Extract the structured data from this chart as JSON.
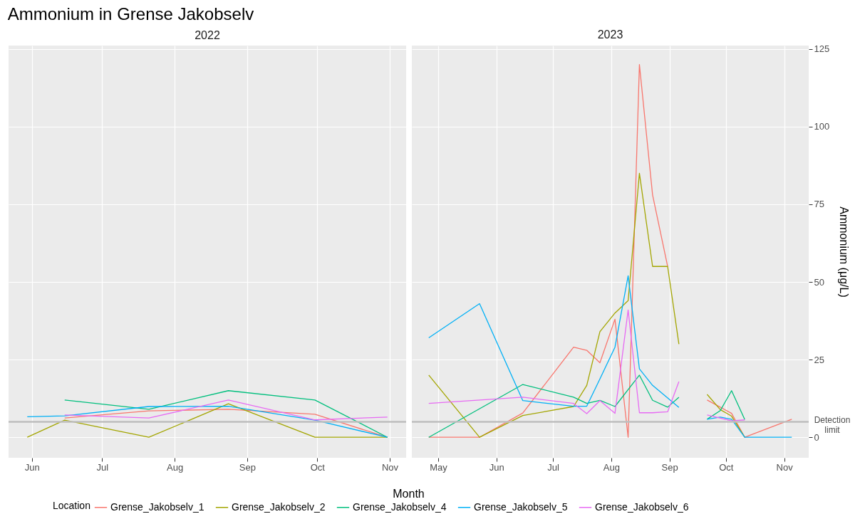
{
  "chart_data": [
    {
      "type": "line",
      "title": "Ammonium in Grense Jakobselv",
      "subtitle": "2022",
      "xlabel": "Month",
      "legend_title": "Location",
      "legend": "bottom",
      "grid": true,
      "tick_labels": "x",
      "line_style": "solid",
      "xlim": [
        "2022-05-22",
        "2022-11-08"
      ],
      "xticks": [
        {
          "value": "2022-06-01",
          "label": "Jun"
        },
        {
          "value": "2022-07-01",
          "label": "Jul"
        },
        {
          "value": "2022-08-01",
          "label": "Aug"
        },
        {
          "value": "2022-09-01",
          "label": "Sep"
        },
        {
          "value": "2022-10-01",
          "label": "Oct"
        },
        {
          "value": "2022-11-01",
          "label": "Nov"
        }
      ],
      "ylim": [
        -6.6,
        126.1
      ],
      "yticks": [
        0,
        25,
        50,
        75,
        100,
        125
      ],
      "ref_lines": [
        {
          "axis": "y",
          "value": 5,
          "color": "#bebebe"
        }
      ],
      "series": [
        {
          "name": "Grense_Jakobselv_1",
          "color": "#f8766d",
          "x": [
            "2022-06-15",
            "2022-07-21",
            "2022-08-24",
            "2022-09-30",
            "2022-10-31"
          ],
          "values": [
            6.2,
            8.5,
            9,
            7.4,
            0
          ]
        },
        {
          "name": "Grense_Jakobselv_2",
          "color": "#a3a500",
          "x": [
            "2022-05-30",
            "2022-06-15",
            "2022-07-21",
            "2022-08-24",
            "2022-09-30",
            "2022-10-31"
          ],
          "values": [
            0,
            5.5,
            0,
            10.8,
            0,
            0
          ]
        },
        {
          "name": "Grense_Jakobselv_4",
          "color": "#00bf7d",
          "x": [
            "2022-06-15",
            "2022-07-21",
            "2022-08-24",
            "2022-09-30",
            "2022-10-31"
          ],
          "values": [
            12,
            9,
            15,
            12,
            0
          ]
        },
        {
          "name": "Grense_Jakobselv_5",
          "color": "#00b0f6",
          "x": [
            "2022-05-30",
            "2022-06-15",
            "2022-07-21",
            "2022-08-24",
            "2022-09-30",
            "2022-10-31"
          ],
          "values": [
            6.6,
            6.9,
            9.9,
            10,
            5.5,
            0
          ]
        },
        {
          "name": "Grense_Jakobselv_6",
          "color": "#e76bf3",
          "x": [
            "2022-06-15",
            "2022-07-21",
            "2022-08-24",
            "2022-09-30",
            "2022-10-31"
          ],
          "values": [
            7.2,
            6.2,
            12,
            5.6,
            6.5
          ]
        }
      ]
    },
    {
      "type": "line",
      "subtitle": "2023",
      "ylabel": "Ammonium (μg/L)",
      "grid": true,
      "line_style": "solid",
      "xlim": [
        "2023-04-17",
        "2023-11-14"
      ],
      "xticks": [
        {
          "value": "2023-05-01",
          "label": "May"
        },
        {
          "value": "2023-06-01",
          "label": "Jun"
        },
        {
          "value": "2023-07-01",
          "label": "Jul"
        },
        {
          "value": "2023-08-01",
          "label": "Aug"
        },
        {
          "value": "2023-09-01",
          "label": "Sep"
        },
        {
          "value": "2023-10-01",
          "label": "Oct"
        },
        {
          "value": "2023-11-01",
          "label": "Nov"
        }
      ],
      "ylim": [
        -6.6,
        126.1
      ],
      "yticks": [
        0,
        25,
        50,
        75,
        100,
        125
      ],
      "ref_lines": [
        {
          "axis": "y",
          "value": 5,
          "label": "Detection limit",
          "color": "#bebebe"
        }
      ],
      "series": [
        {
          "color": "#f8766d",
          "x": [
            "2023-04-26",
            "2023-05-23",
            "2023-06-15",
            "2023-07-12",
            "2023-07-19",
            "2023-07-26",
            "2023-08-03",
            "2023-08-10",
            "2023-08-16",
            "2023-08-23",
            "2023-08-31",
            "2023-09-14",
            "2023-09-21",
            "2023-10-04",
            "2023-10-11",
            "2023-11-05"
          ],
          "values": [
            0,
            0,
            7.8,
            29,
            28,
            24,
            38,
            0,
            120,
            78,
            55,
            null,
            12,
            7.7,
            0,
            5.8
          ]
        },
        {
          "color": "#a3a500",
          "x": [
            "2023-04-26",
            "2023-05-23",
            "2023-06-15",
            "2023-07-12",
            "2023-07-19",
            "2023-07-26",
            "2023-08-03",
            "2023-08-10",
            "2023-08-16",
            "2023-08-23",
            "2023-08-31",
            "2023-09-06",
            "2023-09-14",
            "2023-09-21",
            "2023-09-28",
            "2023-10-04",
            "2023-10-11"
          ],
          "values": [
            20,
            0,
            7,
            9.9,
            16.7,
            34,
            40,
            44,
            85,
            55,
            55,
            30,
            null,
            13.8,
            8.9,
            6.8,
            0
          ]
        },
        {
          "color": "#00bf7d",
          "x": [
            "2023-04-26",
            "2023-06-15",
            "2023-07-12",
            "2023-07-19",
            "2023-07-26",
            "2023-08-03",
            "2023-08-16",
            "2023-08-23",
            "2023-08-31",
            "2023-09-06",
            "2023-09-14",
            "2023-09-21",
            "2023-09-28",
            "2023-10-04",
            "2023-10-11"
          ],
          "values": [
            0,
            17,
            12.9,
            10.9,
            11.9,
            9.9,
            20,
            11.9,
            9.7,
            12.9,
            null,
            5.8,
            8.6,
            15,
            5.7
          ]
        },
        {
          "color": "#00b0f6",
          "x": [
            "2023-04-26",
            "2023-05-23",
            "2023-06-15",
            "2023-07-12",
            "2023-07-19",
            "2023-07-26",
            "2023-08-03",
            "2023-08-10",
            "2023-08-16",
            "2023-08-23",
            "2023-09-06",
            "2023-09-14",
            "2023-09-21",
            "2023-09-28",
            "2023-10-04",
            "2023-10-11",
            "2023-11-05"
          ],
          "values": [
            32,
            43,
            11.8,
            10,
            10,
            18.8,
            29,
            52,
            22,
            16.7,
            9.6,
            null,
            5.8,
            6.5,
            5.8,
            0,
            0
          ]
        },
        {
          "color": "#e76bf3",
          "x": [
            "2023-04-26",
            "2023-06-15",
            "2023-07-12",
            "2023-07-19",
            "2023-07-26",
            "2023-08-03",
            "2023-08-10",
            "2023-08-16",
            "2023-08-23",
            "2023-08-31",
            "2023-09-06",
            "2023-09-14",
            "2023-09-21",
            "2023-10-04",
            "2023-10-11"
          ],
          "values": [
            10.9,
            12.9,
            10.9,
            7.6,
            11.8,
            7.7,
            41,
            7.9,
            7.9,
            8.2,
            17.9,
            null,
            7.2,
            5.3,
            5.6
          ]
        }
      ]
    }
  ]
}
